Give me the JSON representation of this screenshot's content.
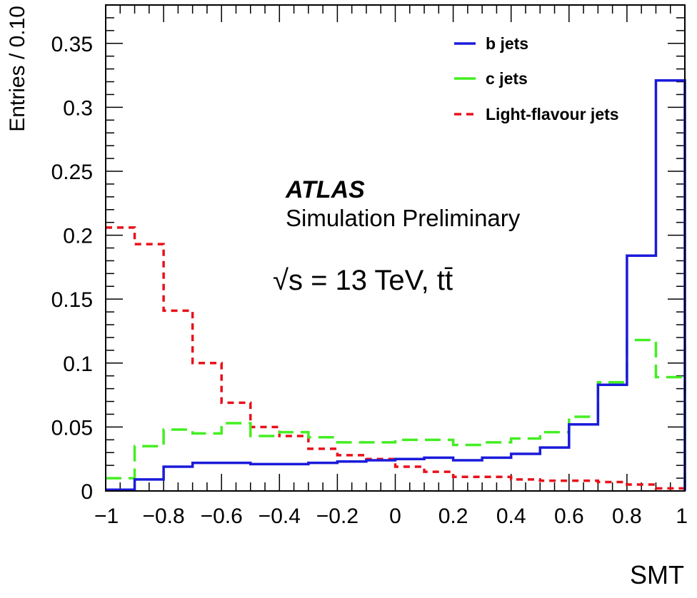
{
  "chart_data": {
    "type": "histogram",
    "xlabel": "SMT",
    "ylabel": "Entries / 0.10",
    "xlim": [
      -1,
      1
    ],
    "ylim": [
      0,
      0.38
    ],
    "bin_width": 0.1,
    "bin_edges": [
      -1.0,
      -0.9,
      -0.8,
      -0.7,
      -0.6,
      -0.5,
      -0.4,
      -0.3,
      -0.2,
      -0.1,
      0.0,
      0.1,
      0.2,
      0.3,
      0.4,
      0.5,
      0.6,
      0.7,
      0.8,
      0.9,
      1.0
    ],
    "xticks": [
      "-1",
      "-0.8",
      "-0.6",
      "-0.4",
      "-0.2",
      "0",
      "0.2",
      "0.4",
      "0.6",
      "0.8",
      "1"
    ],
    "xtick_values": [
      -1,
      -0.8,
      -0.6,
      -0.4,
      -0.2,
      0,
      0.2,
      0.4,
      0.6,
      0.8,
      1
    ],
    "yticks": [
      "0",
      "0.05",
      "0.1",
      "0.15",
      "0.2",
      "0.25",
      "0.3",
      "0.35"
    ],
    "ytick_values": [
      0,
      0.05,
      0.1,
      0.15,
      0.2,
      0.25,
      0.3,
      0.35
    ],
    "legend_position": "top-right",
    "series": [
      {
        "name": "b jets",
        "color": "#1a1adb",
        "style": "solid",
        "values": [
          0.001,
          0.009,
          0.019,
          0.022,
          0.022,
          0.021,
          0.021,
          0.022,
          0.023,
          0.024,
          0.025,
          0.026,
          0.024,
          0.026,
          0.029,
          0.034,
          0.052,
          0.083,
          0.184,
          0.321
        ]
      },
      {
        "name": "c jets",
        "color": "#44ee22",
        "style": "long-dash",
        "values": [
          0.01,
          0.035,
          0.048,
          0.045,
          0.053,
          0.043,
          0.046,
          0.042,
          0.038,
          0.038,
          0.04,
          0.04,
          0.036,
          0.038,
          0.041,
          0.046,
          0.058,
          0.085,
          0.118,
          0.089
        ]
      },
      {
        "name": "Light-flavour jets",
        "color": "#e8101a",
        "style": "short-dash",
        "values": [
          0.206,
          0.193,
          0.141,
          0.1,
          0.069,
          0.05,
          0.043,
          0.033,
          0.028,
          0.025,
          0.019,
          0.015,
          0.011,
          0.011,
          0.009,
          0.008,
          0.008,
          0.007,
          0.005,
          0.002
        ]
      }
    ],
    "annotations": {
      "experiment": "ATLAS",
      "status": "Simulation Preliminary",
      "energy": "√s = 13 TeV, tt̄"
    }
  }
}
